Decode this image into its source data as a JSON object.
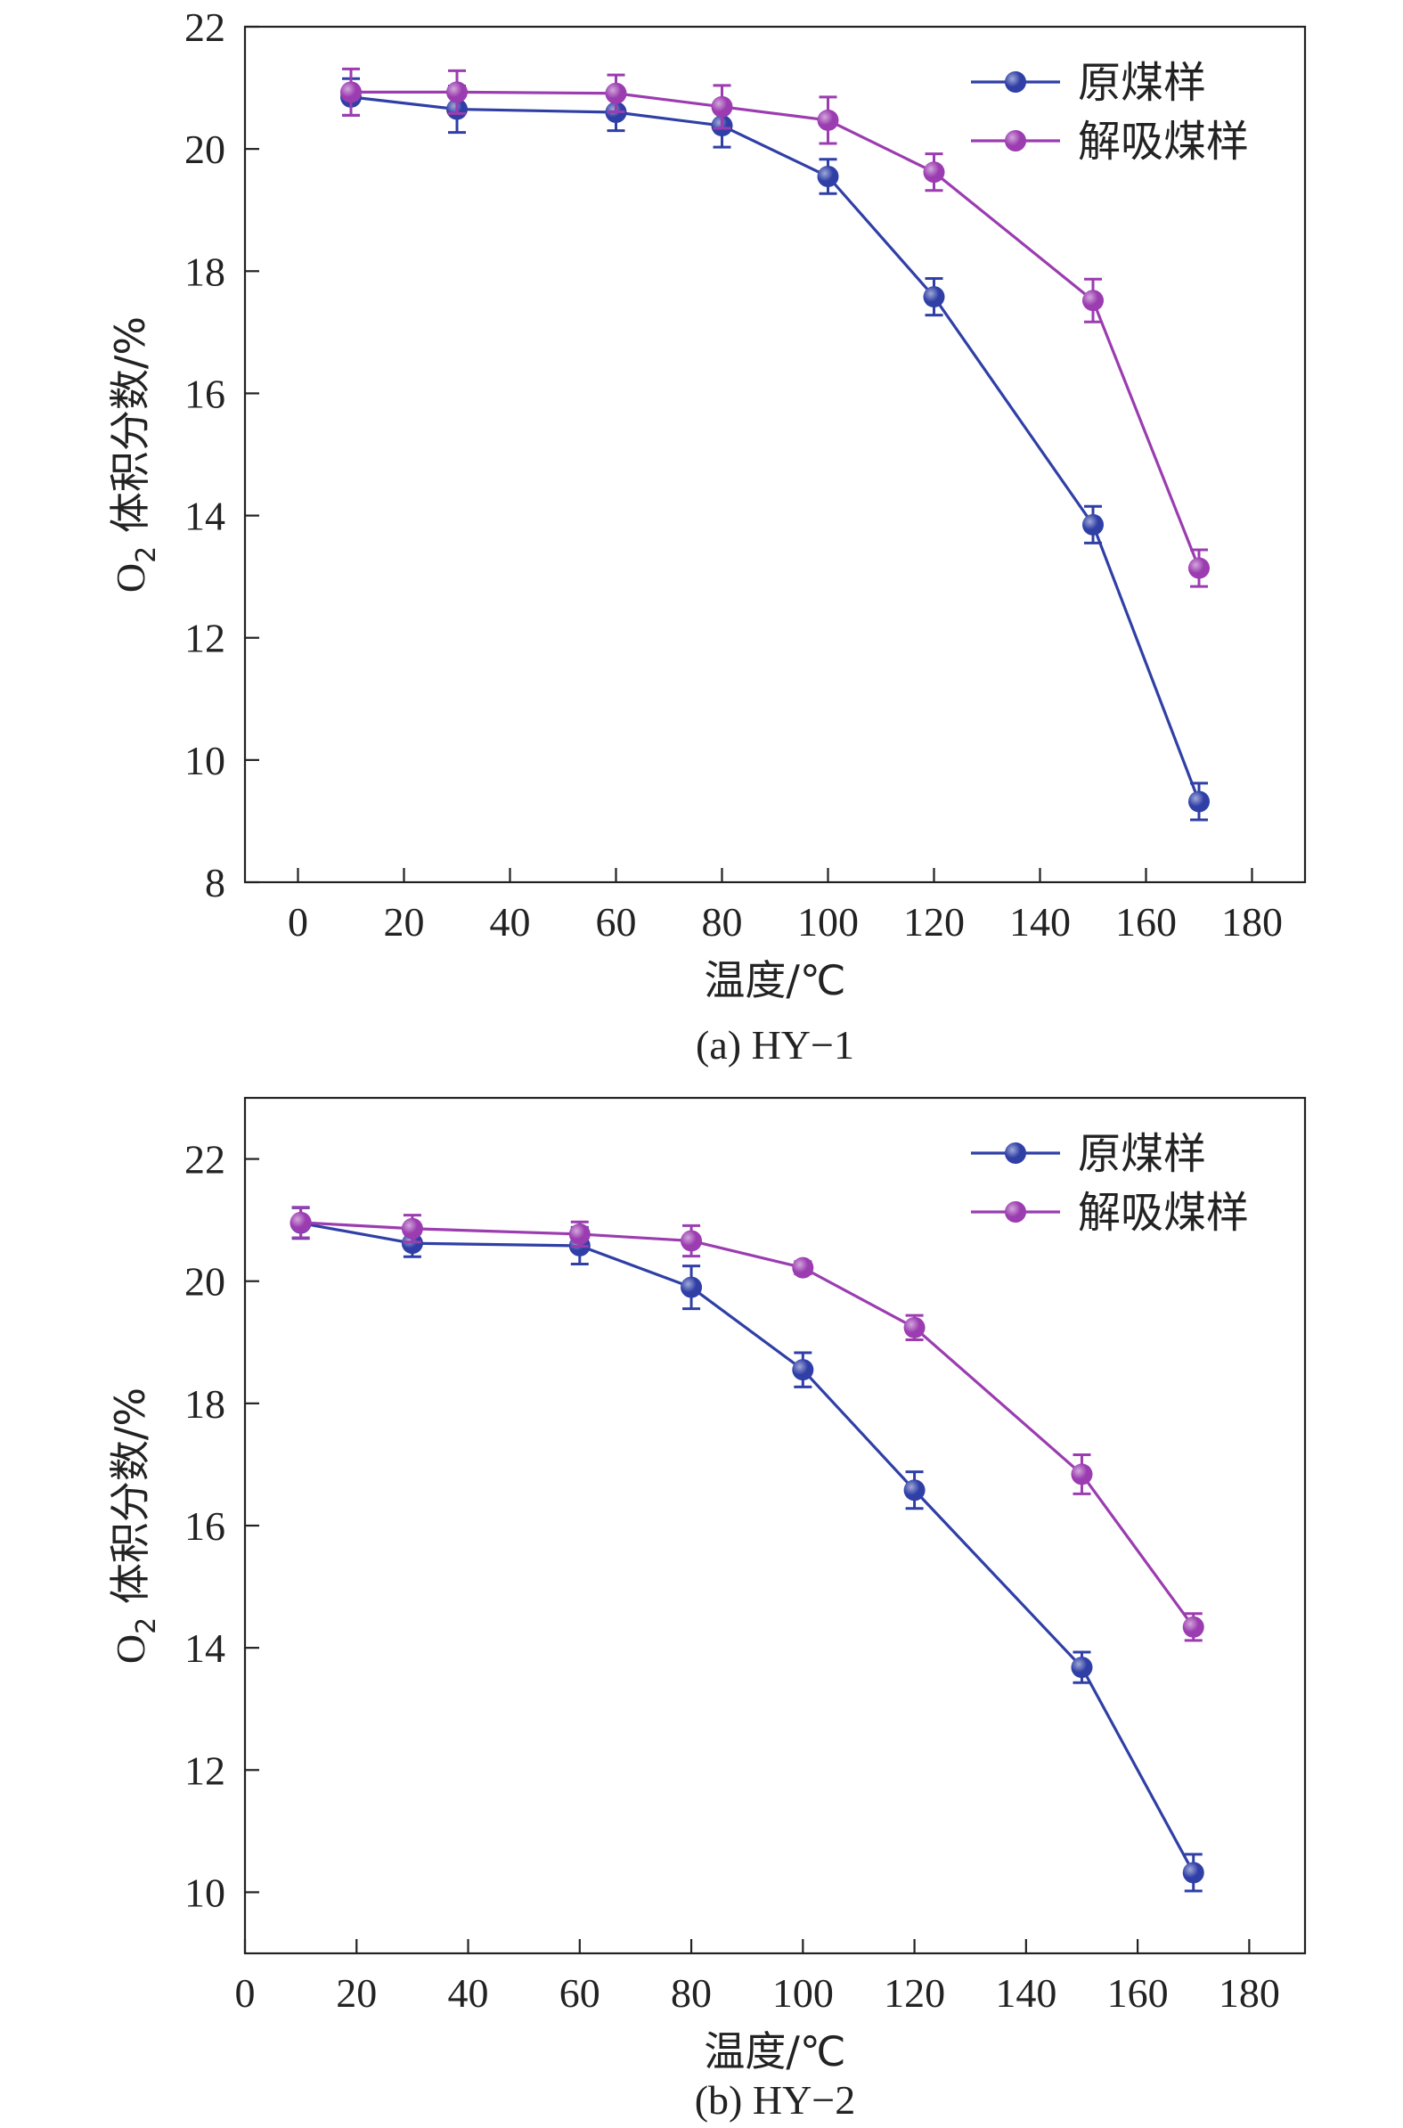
{
  "chart_data": [
    {
      "type": "line",
      "caption": "(a) HY−1",
      "xlabel": "温度/℃",
      "ylabel_main": "O",
      "ylabel_sub": "2",
      "ylabel_rest": " 体积分数/%",
      "xlim": [
        -10,
        190
      ],
      "ylim": [
        8,
        22
      ],
      "xticks": [
        0,
        20,
        40,
        60,
        80,
        100,
        120,
        140,
        160,
        180
      ],
      "yticks": [
        8,
        10,
        12,
        14,
        16,
        18,
        20,
        22
      ],
      "legend_position": "top-right",
      "series": [
        {
          "name": "原煤样",
          "color": "#2f3fa6",
          "x": [
            10,
            30,
            60,
            80,
            100,
            120,
            150,
            170
          ],
          "y": [
            20.85,
            20.65,
            20.6,
            20.38,
            19.55,
            17.58,
            13.85,
            9.32
          ],
          "err": [
            0.3,
            0.38,
            0.3,
            0.35,
            0.28,
            0.3,
            0.3,
            0.3
          ]
        },
        {
          "name": "解吸煤样",
          "color": "#9b3cb0",
          "x": [
            10,
            30,
            60,
            80,
            100,
            120,
            150,
            170
          ],
          "y": [
            20.93,
            20.93,
            20.91,
            20.69,
            20.47,
            19.62,
            17.52,
            13.14
          ],
          "err": [
            0.38,
            0.35,
            0.3,
            0.35,
            0.38,
            0.3,
            0.35,
            0.3
          ]
        }
      ]
    },
    {
      "type": "line",
      "caption": "(b) HY−2",
      "xlabel": "温度/℃",
      "ylabel_main": "O",
      "ylabel_sub": "2",
      "ylabel_rest": " 体积分数/%",
      "xlim": [
        0,
        190
      ],
      "ylim": [
        9,
        23
      ],
      "xticks": [
        0,
        20,
        40,
        60,
        80,
        100,
        120,
        140,
        160,
        180
      ],
      "yticks": [
        10,
        12,
        14,
        16,
        18,
        20,
        22
      ],
      "legend_position": "top-right",
      "series": [
        {
          "name": "原煤样",
          "color": "#2f3fa6",
          "x": [
            10,
            30,
            60,
            80,
            100,
            120,
            150,
            170
          ],
          "y": [
            20.95,
            20.62,
            20.58,
            19.9,
            18.55,
            16.58,
            13.68,
            10.32
          ],
          "err": [
            0.25,
            0.22,
            0.3,
            0.35,
            0.28,
            0.3,
            0.25,
            0.3
          ]
        },
        {
          "name": "解吸煤样",
          "color": "#9b3cb0",
          "x": [
            10,
            30,
            60,
            80,
            100,
            120,
            150,
            170
          ],
          "y": [
            20.96,
            20.86,
            20.77,
            20.66,
            20.22,
            19.24,
            16.84,
            14.34
          ],
          "err": [
            0.25,
            0.22,
            0.2,
            0.25,
            0.1,
            0.2,
            0.32,
            0.22
          ]
        }
      ]
    }
  ]
}
